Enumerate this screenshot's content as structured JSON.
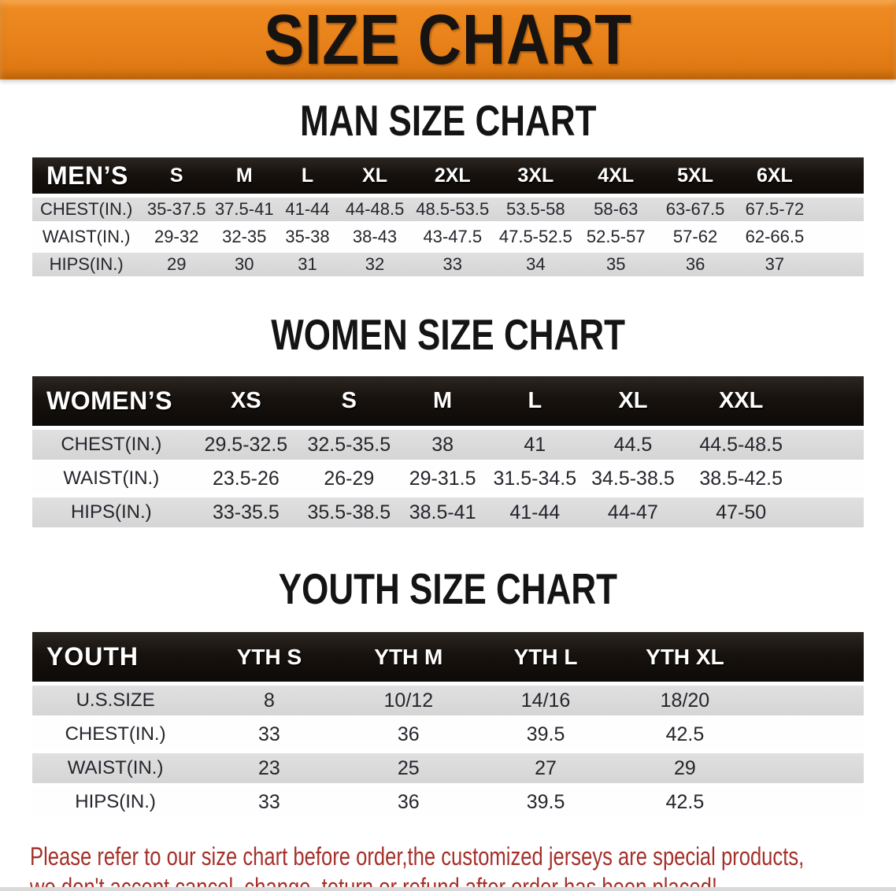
{
  "banner": {
    "title": "SIZE CHART",
    "bg_color": "#e8811a",
    "text_color": "#171310"
  },
  "sections": [
    {
      "heading": "MAN SIZE CHART",
      "table": {
        "header_label": "MEN’S",
        "columns": [
          "S",
          "M",
          "L",
          "XL",
          "2XL",
          "3XL",
          "4XL",
          "5XL",
          "6XL"
        ],
        "rows": [
          {
            "label": "CHEST(IN.)",
            "values": [
              "35-37.5",
              "37.5-41",
              "41-44",
              "44-48.5",
              "48.5-53.5",
              "53.5-58",
              "58-63",
              "63-67.5",
              "67.5-72"
            ]
          },
          {
            "label": "WAIST(IN.)",
            "values": [
              "29-32",
              "32-35",
              "35-38",
              "38-43",
              "43-47.5",
              "47.5-52.5",
              "52.5-57",
              "57-62",
              "62-66.5"
            ]
          },
          {
            "label": "HIPS(IN.)",
            "values": [
              "29",
              "30",
              "31",
              "32",
              "33",
              "34",
              "35",
              "36",
              "37"
            ]
          }
        ]
      }
    },
    {
      "heading": "WOMEN SIZE CHART",
      "table": {
        "header_label": "WOMEN’S",
        "columns": [
          "XS",
          "S",
          "M",
          "L",
          "XL",
          "XXL"
        ],
        "rows": [
          {
            "label": "CHEST(IN.)",
            "values": [
              "29.5-32.5",
              "32.5-35.5",
              "38",
              "41",
              "44.5",
              "44.5-48.5"
            ]
          },
          {
            "label": "WAIST(IN.)",
            "values": [
              "23.5-26",
              "26-29",
              "29-31.5",
              "31.5-34.5",
              "34.5-38.5",
              "38.5-42.5"
            ]
          },
          {
            "label": "HIPS(IN.)",
            "values": [
              "33-35.5",
              "35.5-38.5",
              "38.5-41",
              "41-44",
              "44-47",
              "47-50"
            ]
          }
        ]
      }
    },
    {
      "heading": "YOUTH SIZE CHART",
      "table": {
        "header_label": "YOUTH",
        "columns": [
          "YTH S",
          "YTH M",
          "YTH L",
          "YTH XL"
        ],
        "rows": [
          {
            "label": "U.S.SIZE",
            "values": [
              "8",
              "10/12",
              "14/16",
              "18/20"
            ]
          },
          {
            "label": "CHEST(IN.)",
            "values": [
              "33",
              "36",
              "39.5",
              "42.5"
            ]
          },
          {
            "label": "WAIST(IN.)",
            "values": [
              "23",
              "25",
              "27",
              "29"
            ]
          },
          {
            "label": "HIPS(IN.)",
            "values": [
              "33",
              "36",
              "39.5",
              "42.5"
            ]
          }
        ]
      }
    }
  ],
  "disclaimer": {
    "line1": "Please refer to our size chart before order,the customized jerseys are special products,",
    "line2": "we don't accept cancel, change, teturn or refund after order has been placed!",
    "color": "#a5302a"
  }
}
